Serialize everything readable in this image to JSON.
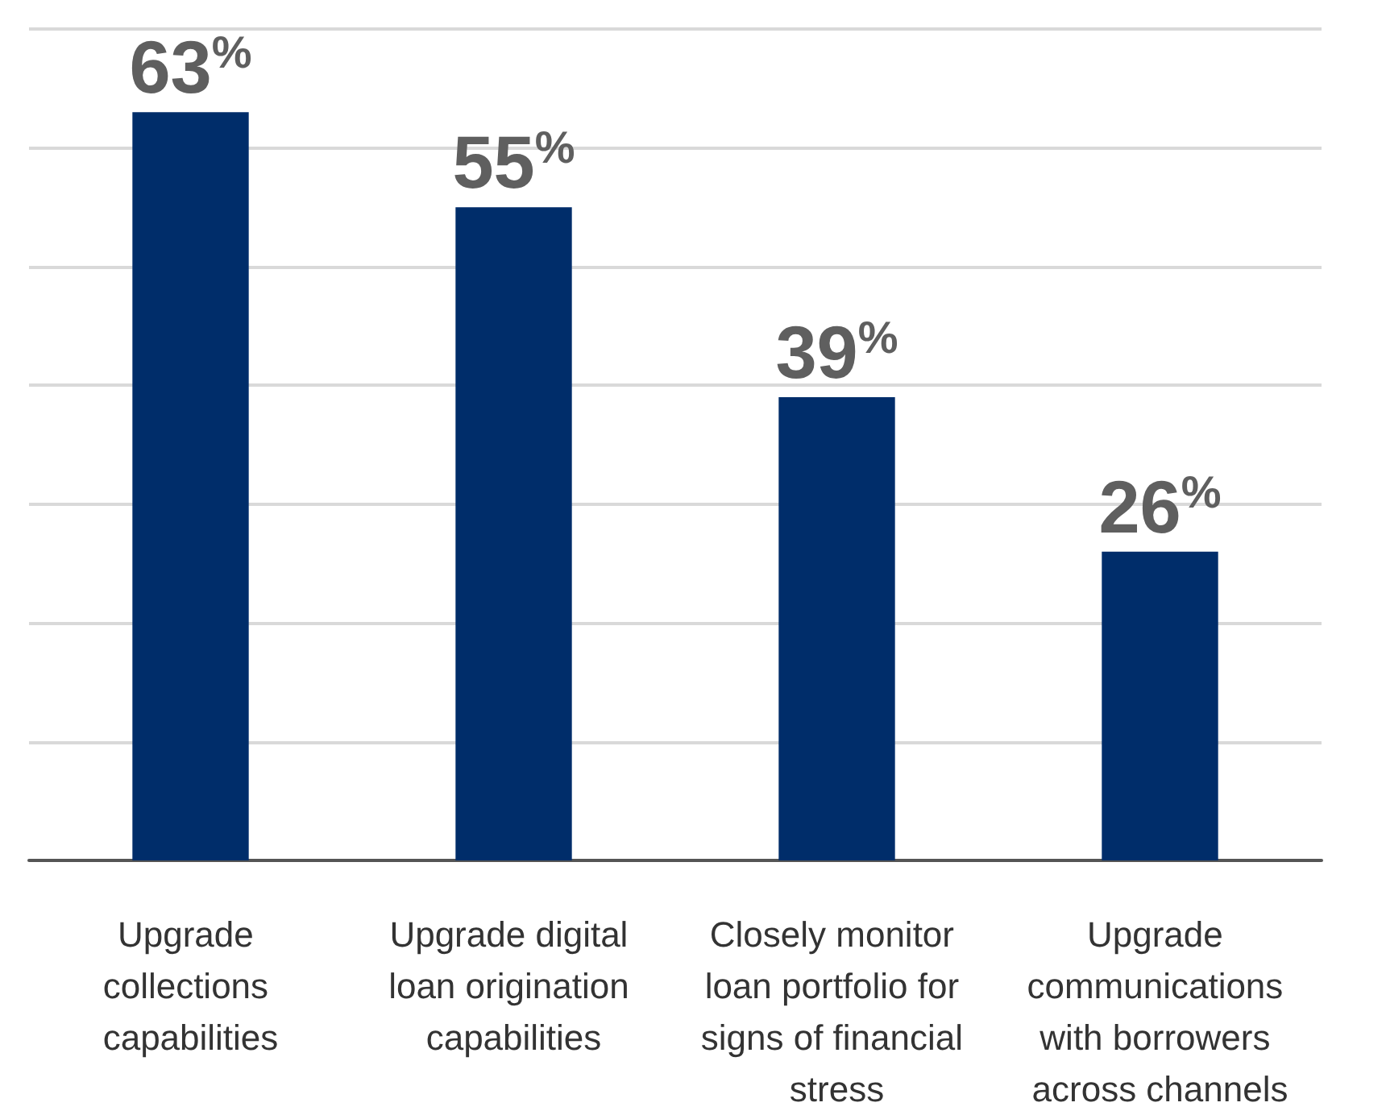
{
  "chart_data": {
    "type": "bar",
    "categories": [
      "Upgrade collections capabilities",
      "Upgrade digital loan origination capabilities",
      "Closely monitor loan portfolio for signs of financial stress",
      "Upgrade communications with borrowers across channels"
    ],
    "values": [
      63,
      55,
      39,
      26
    ],
    "value_labels": [
      "63$^{%}$",
      "55$^{%}$",
      "39$^{%}$",
      "26$^{%}$"
    ],
    "color": "#002d6a",
    "relative": false,
    "ylim": [
      0,
      70
    ],
    "yticks": [
      {
        "value": 0,
        "label": null
      },
      {
        "value": 10,
        "label": null
      },
      {
        "value": 20,
        "label": null
      },
      {
        "value": 30,
        "label": null
      },
      {
        "value": 40,
        "label": null
      },
      {
        "value": 50,
        "label": null
      },
      {
        "value": 60,
        "label": null
      },
      {
        "value": 70,
        "label": null
      }
    ],
    "tick_labels": "x",
    "grid": "y"
  }
}
